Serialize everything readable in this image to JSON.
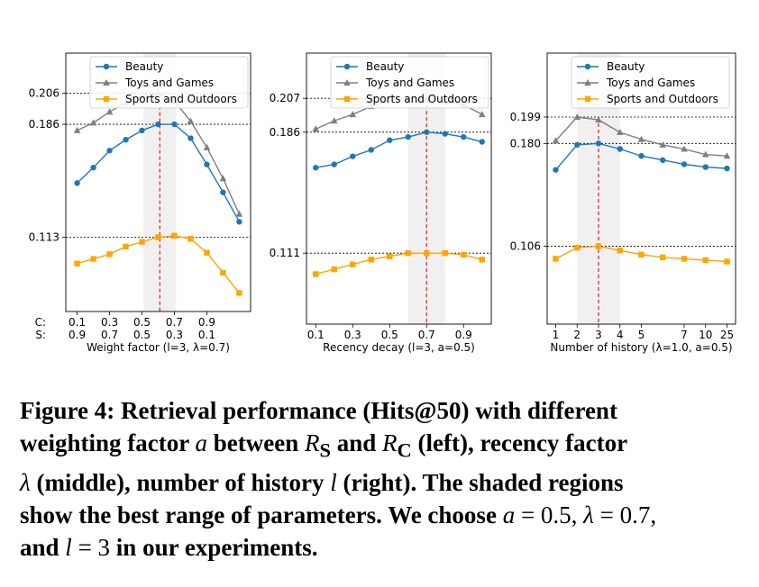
{
  "caption": {
    "label": "Figure 4: Retrieval performance (Hits@50) with different",
    "line2": "weighting factor",
    "sym_a": "a",
    "between": "between",
    "sym_R": "R",
    "sub_S": "S",
    "and": "and",
    "sub_C": "C",
    "left": "(left), recency factor",
    "sym_lambda": "λ",
    "middle": "(middle), number of history",
    "sym_l": "l",
    "right": "(right). The shaded regions",
    "line4": "show the best range of parameters. We choose",
    "eq_a": "= 0.5,",
    "eq_lambda": "= 0.7,",
    "line5_and": "and",
    "eq_l": "= 3",
    "line5_end": "in our experiments."
  },
  "chart_data": [
    {
      "type": "line",
      "xlabel": "Weight factor (l=3, λ=0.7)",
      "x": [
        0.1,
        0.2,
        0.3,
        0.4,
        0.5,
        0.6,
        0.7,
        0.8,
        0.9,
        1.0,
        1.1
      ],
      "xlim": [
        0.03,
        1.17
      ],
      "ylim": [
        0.065,
        0.232
      ],
      "tick_rows": [
        {
          "label": "C:",
          "ticks": [
            [
              0.1,
              "0.1"
            ],
            [
              0.3,
              "0.3"
            ],
            [
              0.5,
              "0.5"
            ],
            [
              0.7,
              "0.7"
            ],
            [
              0.9,
              "0.9"
            ]
          ]
        },
        {
          "label": "S:",
          "ticks": [
            [
              0.1,
              "0.9"
            ],
            [
              0.3,
              "0.7"
            ],
            [
              0.5,
              "0.5"
            ],
            [
              0.7,
              "0.3"
            ],
            [
              0.9,
              "0.1"
            ]
          ]
        }
      ],
      "shade": [
        0.51,
        0.71
      ],
      "best_x": 0.61,
      "hlines": [
        [
          0.206,
          "0.206"
        ],
        [
          0.186,
          "0.186"
        ],
        [
          0.113,
          "0.113"
        ]
      ],
      "legend": "top",
      "series": [
        {
          "name": "Beauty",
          "color": "#1f77b4",
          "marker": "circle",
          "values": [
            0.148,
            0.158,
            0.169,
            0.176,
            0.182,
            0.186,
            0.186,
            0.177,
            0.16,
            0.142,
            0.123
          ]
        },
        {
          "name": "Toys and Games",
          "color": "#7f7f7f",
          "marker": "triangle",
          "values": [
            0.182,
            0.187,
            0.194,
            0.2,
            0.204,
            0.206,
            0.201,
            0.188,
            0.171,
            0.151,
            0.128
          ]
        },
        {
          "name": "Sports and Outdoors",
          "color": "#ffa500",
          "marker": "square",
          "values": [
            0.096,
            0.099,
            0.102,
            0.107,
            0.11,
            0.113,
            0.114,
            0.112,
            0.103,
            0.09,
            0.077
          ]
        }
      ]
    },
    {
      "type": "line",
      "xlabel": "Recency decay (l=3, a=0.5)",
      "x": [
        0.1,
        0.2,
        0.3,
        0.4,
        0.5,
        0.6,
        0.7,
        0.8,
        0.9,
        1.0
      ],
      "xlim": [
        0.05,
        1.05
      ],
      "ylim": [
        0.067,
        0.235
      ],
      "tick_rows": [
        {
          "label": "",
          "ticks": [
            [
              0.1,
              "0.1"
            ],
            [
              0.3,
              "0.3"
            ],
            [
              0.5,
              "0.5"
            ],
            [
              0.7,
              "0.7"
            ],
            [
              0.9,
              "0.9"
            ]
          ]
        }
      ],
      "shade": [
        0.6,
        0.8
      ],
      "best_x": 0.7,
      "hlines": [
        [
          0.207,
          "0.207"
        ],
        [
          0.186,
          "0.186"
        ],
        [
          0.111,
          "0.111"
        ]
      ],
      "legend": "top",
      "series": [
        {
          "name": "Beauty",
          "color": "#1f77b4",
          "marker": "circle",
          "values": [
            0.164,
            0.166,
            0.171,
            0.175,
            0.181,
            0.183,
            0.186,
            0.185,
            0.183,
            0.18
          ]
        },
        {
          "name": "Toys and Games",
          "color": "#7f7f7f",
          "marker": "triangle",
          "values": [
            0.188,
            0.193,
            0.197,
            0.202,
            0.206,
            0.207,
            0.206,
            0.205,
            0.203,
            0.197
          ]
        },
        {
          "name": "Sports and Outdoors",
          "color": "#ffa500",
          "marker": "square",
          "values": [
            0.098,
            0.101,
            0.104,
            0.107,
            0.109,
            0.111,
            0.111,
            0.111,
            0.11,
            0.107
          ]
        }
      ]
    },
    {
      "type": "line",
      "xlabel": "Number of history (λ=1.0, a=0.5)",
      "x": [
        1,
        2,
        3,
        4,
        5,
        6,
        7,
        8,
        9
      ],
      "xlim": [
        0.6,
        9.4
      ],
      "ylim": [
        0.05,
        0.245
      ],
      "tick_rows": [
        {
          "label": "",
          "ticks": [
            [
              1,
              "1"
            ],
            [
              2,
              "2"
            ],
            [
              3,
              "3"
            ],
            [
              4,
              "4"
            ],
            [
              5,
              "5"
            ],
            [
              7,
              "7"
            ],
            [
              8,
              "10"
            ],
            [
              9,
              "25"
            ]
          ]
        }
      ],
      "shade": [
        2.0,
        4.0
      ],
      "best_x": 3,
      "hlines": [
        [
          0.199,
          "0.199"
        ],
        [
          0.18,
          "0.180"
        ],
        [
          0.106,
          "0.106"
        ]
      ],
      "legend": "top",
      "series": [
        {
          "name": "Beauty",
          "color": "#1f77b4",
          "marker": "circle",
          "values": [
            0.161,
            0.179,
            0.18,
            0.176,
            0.171,
            0.168,
            0.165,
            0.163,
            0.162
          ]
        },
        {
          "name": "Toys and Games",
          "color": "#7f7f7f",
          "marker": "triangle",
          "values": [
            0.182,
            0.199,
            0.197,
            0.188,
            0.183,
            0.179,
            0.176,
            0.172,
            0.171
          ]
        },
        {
          "name": "Sports and Outdoors",
          "color": "#ffa500",
          "marker": "square",
          "values": [
            0.097,
            0.105,
            0.106,
            0.103,
            0.1,
            0.098,
            0.097,
            0.096,
            0.095
          ]
        }
      ]
    }
  ]
}
